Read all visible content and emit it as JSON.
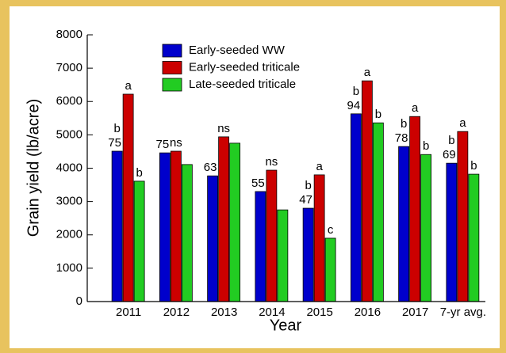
{
  "chart_data": {
    "type": "bar",
    "x_label": "Year",
    "y_label": "Grain yield (lb/acre)",
    "categories": [
      "2011",
      "2012",
      "2013",
      "2014",
      "2015",
      "2016",
      "2017",
      "7-yr avg."
    ],
    "series": [
      {
        "name": "Early-seeded WW",
        "color": "#0000cc",
        "values": [
          4510,
          4460,
          3770,
          3300,
          2800,
          5630,
          4650,
          4150
        ],
        "labels": [
          "b",
          null,
          null,
          null,
          "b",
          "b",
          "b",
          "b"
        ]
      },
      {
        "name": "Early-seeded triticale",
        "color": "#cc0000",
        "values": [
          6220,
          4510,
          4940,
          3940,
          3800,
          6620,
          5550,
          5100
        ],
        "labels": [
          "a",
          "ns",
          "ns",
          "ns",
          "a",
          "a",
          "a",
          "a"
        ]
      },
      {
        "name": "Late-seeded triticale",
        "color": "#22cc22",
        "values": [
          3610,
          4110,
          4750,
          2750,
          1900,
          5360,
          4410,
          3820
        ],
        "labels": [
          "b",
          null,
          null,
          null,
          "c",
          "b",
          "b",
          "b"
        ]
      }
    ],
    "annotations": [
      75,
      75,
      63,
      55,
      47,
      94,
      78,
      69
    ],
    "ylim": [
      0,
      8000
    ],
    "yticks": [
      0,
      1000,
      2000,
      3000,
      4000,
      5000,
      6000,
      7000,
      8000
    ]
  }
}
